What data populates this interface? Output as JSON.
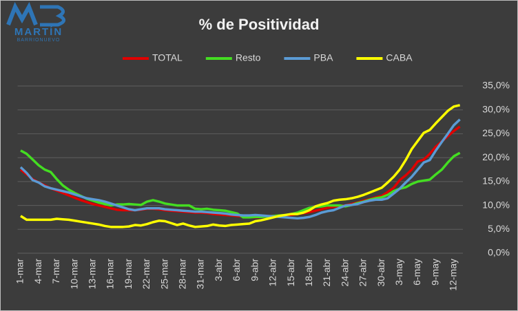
{
  "logo": {
    "name": "MARTÍN",
    "surname": "BARRIONUEVO"
  },
  "chart_data": {
    "type": "line",
    "title": "% de Positividad",
    "categories": [
      "1-mar",
      null,
      null,
      "4-mar",
      null,
      null,
      "7-mar",
      null,
      null,
      "10-mar",
      null,
      null,
      "13-mar",
      null,
      null,
      "16-mar",
      null,
      null,
      "19-mar",
      null,
      null,
      "22-mar",
      null,
      null,
      "25-mar",
      null,
      null,
      "28-mar",
      null,
      null,
      "31-mar",
      null,
      null,
      "3-abr",
      null,
      null,
      "6-abr",
      null,
      null,
      "9-abr",
      null,
      null,
      "12-abr",
      null,
      null,
      "15-abr",
      null,
      null,
      "18-abr",
      null,
      null,
      "21-abr",
      null,
      null,
      "24-abr",
      null,
      null,
      "27-abr",
      null,
      null,
      "30-abr",
      null,
      null,
      "3-may",
      null,
      null,
      "6-may",
      null,
      null,
      "9-may",
      null,
      null,
      "12-may",
      null
    ],
    "series": [
      {
        "name": "TOTAL",
        "color": "#e00000",
        "values": [
          17.5,
          16.5,
          15.5,
          14.8,
          14.2,
          13.6,
          13.1,
          12.6,
          12.1,
          11.6,
          11.1,
          10.7,
          10.3,
          10.0,
          9.7,
          9.4,
          9.1,
          9.0,
          9.0,
          9.0,
          9.1,
          9.3,
          9.3,
          9.2,
          9.0,
          8.9,
          8.8,
          8.7,
          8.6,
          8.5,
          8.5,
          8.4,
          8.2,
          8.1,
          8.0,
          7.9,
          7.8,
          7.7,
          7.6,
          7.5,
          7.6,
          7.7,
          7.8,
          7.9,
          8.0,
          8.0,
          8.2,
          8.4,
          8.6,
          8.9,
          9.2,
          9.5,
          9.7,
          9.9,
          10.0,
          10.3,
          10.6,
          11.0,
          11.3,
          11.7,
          12.0,
          12.8,
          13.7,
          15.3,
          16.3,
          17.5,
          19.2,
          19.6,
          20.8,
          22.3,
          23.4,
          24.5,
          25.6,
          26.5
        ]
      },
      {
        "name": "Resto",
        "color": "#44dd22",
        "values": [
          21.5,
          20.8,
          19.6,
          18.4,
          17.5,
          17.0,
          15.5,
          14.2,
          13.3,
          12.6,
          12.0,
          11.4,
          11.0,
          10.6,
          10.3,
          10.0,
          10.2,
          10.2,
          10.3,
          10.2,
          10.1,
          10.8,
          11.1,
          10.8,
          10.4,
          10.2,
          10.0,
          10.0,
          10.0,
          9.3,
          9.2,
          9.3,
          9.1,
          9.0,
          8.9,
          8.6,
          8.3,
          7.5,
          7.5,
          7.6,
          7.6,
          7.7,
          7.8,
          7.9,
          8.0,
          8.2,
          8.5,
          9.0,
          9.5,
          9.7,
          9.8,
          10.0,
          10.0,
          10.0,
          9.8,
          10.1,
          10.5,
          10.8,
          11.2,
          11.5,
          11.7,
          12.2,
          13.0,
          13.5,
          13.8,
          14.5,
          15.0,
          15.2,
          15.4,
          16.5,
          17.5,
          19.0,
          20.3,
          21.0
        ]
      },
      {
        "name": "PBA",
        "color": "#5b9bd5",
        "values": [
          18.0,
          16.8,
          15.3,
          14.8,
          14.0,
          13.6,
          13.3,
          13.0,
          12.7,
          12.3,
          11.9,
          11.5,
          11.3,
          11.1,
          10.8,
          10.4,
          10.0,
          9.6,
          9.2,
          9.0,
          9.2,
          9.4,
          9.4,
          9.4,
          9.2,
          9.1,
          9.0,
          8.9,
          8.8,
          8.7,
          8.7,
          8.6,
          8.5,
          8.4,
          8.3,
          8.1,
          8.0,
          7.9,
          7.9,
          8.0,
          7.9,
          7.8,
          7.7,
          7.6,
          7.5,
          7.4,
          7.3,
          7.4,
          7.6,
          8.0,
          8.5,
          8.8,
          9.0,
          9.5,
          10.0,
          10.1,
          10.3,
          10.7,
          11.0,
          11.2,
          11.2,
          11.5,
          12.5,
          13.5,
          14.8,
          16.0,
          17.5,
          19.0,
          19.5,
          21.5,
          23.3,
          25.0,
          26.8,
          28.0
        ]
      },
      {
        "name": "CABA",
        "color": "#ffff00",
        "values": [
          7.8,
          7.0,
          7.0,
          7.0,
          7.0,
          7.0,
          7.2,
          7.1,
          7.0,
          6.8,
          6.6,
          6.4,
          6.2,
          6.0,
          5.7,
          5.5,
          5.5,
          5.5,
          5.6,
          5.9,
          5.8,
          6.1,
          6.5,
          6.8,
          6.7,
          6.3,
          5.9,
          6.2,
          5.8,
          5.5,
          5.6,
          5.7,
          6.0,
          5.8,
          5.7,
          5.9,
          6.0,
          6.1,
          6.2,
          6.7,
          6.9,
          7.2,
          7.5,
          7.8,
          8.0,
          8.2,
          8.2,
          8.5,
          9.0,
          9.8,
          10.2,
          10.5,
          11.0,
          11.2,
          11.3,
          11.5,
          11.8,
          12.2,
          12.7,
          13.2,
          13.7,
          14.8,
          16.0,
          17.5,
          19.5,
          21.8,
          23.5,
          25.2,
          25.8,
          27.2,
          28.5,
          29.8,
          30.7,
          31.0
        ]
      }
    ],
    "ylim": [
      0,
      35
    ],
    "yticks": [
      {
        "value": 0,
        "label": "0,0%"
      },
      {
        "value": 5,
        "label": "5,0%"
      },
      {
        "value": 10,
        "label": "10,0%"
      },
      {
        "value": 15,
        "label": "15,0%"
      },
      {
        "value": 20,
        "label": "20,0%"
      },
      {
        "value": 25,
        "label": "25,0%"
      },
      {
        "value": 30,
        "label": "30,0%"
      },
      {
        "value": 35,
        "label": "35,0%"
      }
    ],
    "grid": true,
    "legend": "top"
  }
}
